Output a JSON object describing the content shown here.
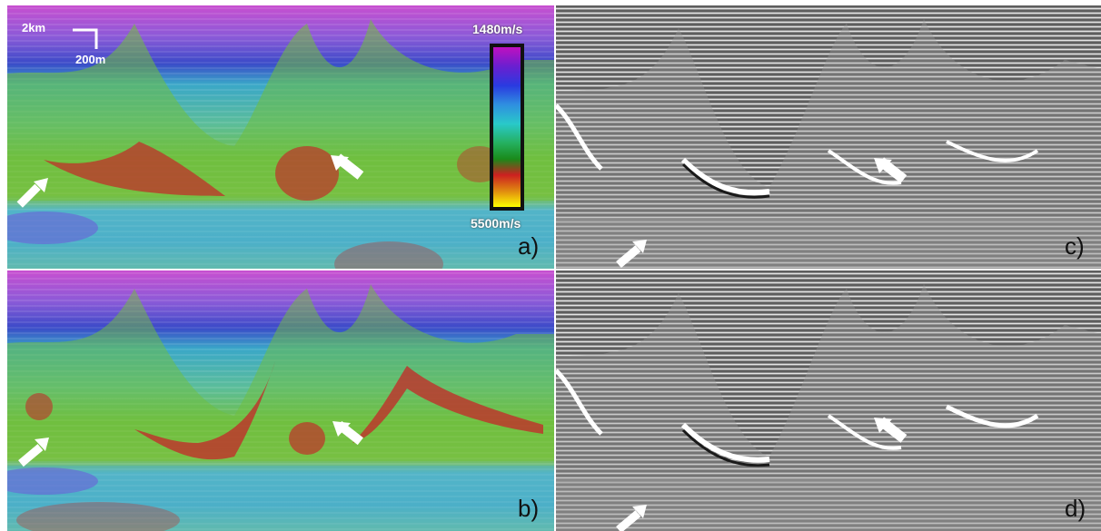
{
  "panels": {
    "a": {
      "label": "a)"
    },
    "b": {
      "label": "b)"
    },
    "c": {
      "label": "c)"
    },
    "d": {
      "label": "d)"
    }
  },
  "scale_bar": {
    "horizontal": "2km",
    "vertical": "200m"
  },
  "colorbar": {
    "top_label": "1480m/s",
    "bottom_label": "5500m/s",
    "colors": [
      "#c010c0",
      "#6a1fd0",
      "#2a3ae0",
      "#2f8fe0",
      "#29c9c9",
      "#25b060",
      "#1a8a1a",
      "#cc2020",
      "#e08a10",
      "#ffff00"
    ]
  },
  "arrow_icon": "white-arrow-icon"
}
